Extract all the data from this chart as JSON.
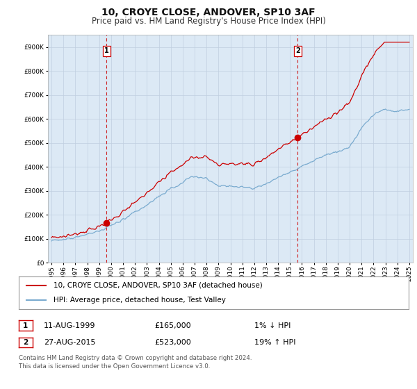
{
  "title": "10, CROYE CLOSE, ANDOVER, SP10 3AF",
  "subtitle": "Price paid vs. HM Land Registry's House Price Index (HPI)",
  "legend_line1": "10, CROYE CLOSE, ANDOVER, SP10 3AF (detached house)",
  "legend_line2": "HPI: Average price, detached house, Test Valley",
  "annotation1_num": "1",
  "annotation1_date": "11-AUG-1999",
  "annotation1_price": "£165,000",
  "annotation1_hpi": "1% ↓ HPI",
  "annotation2_num": "2",
  "annotation2_date": "27-AUG-2015",
  "annotation2_price": "£523,000",
  "annotation2_hpi": "19% ↑ HPI",
  "footer": "Contains HM Land Registry data © Crown copyright and database right 2024.\nThis data is licensed under the Open Government Licence v3.0.",
  "price_color": "#cc0000",
  "hpi_color": "#7aabcf",
  "vline_color": "#cc0000",
  "plot_bg_color": "#dce9f5",
  "background_color": "#ffffff",
  "ylim": [
    0,
    950000
  ],
  "yticks": [
    0,
    100000,
    200000,
    300000,
    400000,
    500000,
    600000,
    700000,
    800000,
    900000
  ],
  "xlim_start": 1994.7,
  "xlim_end": 2025.3,
  "sale1_x": 1999.617,
  "sale1_y": 165000,
  "sale2_x": 2015.65,
  "sale2_y": 523000
}
